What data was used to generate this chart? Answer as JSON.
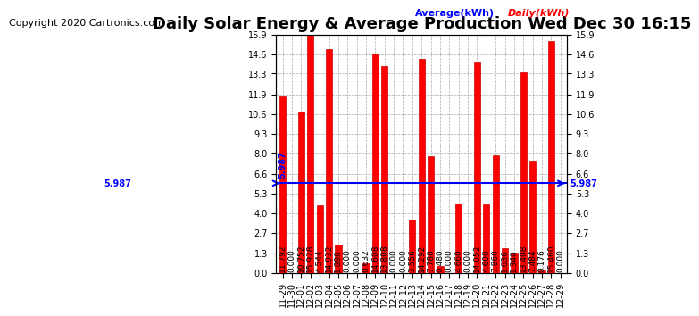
{
  "title": "Daily Solar Energy & Average Production Wed Dec 30 16:15",
  "copyright": "Copyright 2020 Cartronics.com",
  "average_label": "Average(kWh)",
  "daily_label": "Daily(kWh)",
  "average_value": 5.987,
  "categories": [
    "11-29",
    "11-30",
    "12-01",
    "12-02",
    "12-03",
    "12-04",
    "12-05",
    "12-06",
    "12-07",
    "12-08",
    "12-09",
    "12-10",
    "12-11",
    "12-12",
    "12-13",
    "12-14",
    "12-15",
    "12-16",
    "12-17",
    "12-18",
    "12-19",
    "12-20",
    "12-21",
    "12-22",
    "12-23",
    "12-24",
    "12-25",
    "12-26",
    "12-27",
    "12-28",
    "12-29"
  ],
  "values": [
    11.792,
    0.0,
    10.752,
    15.928,
    4.544,
    14.932,
    1.89,
    0.0,
    0.0,
    0.632,
    14.608,
    13.808,
    0.0,
    0.0,
    3.556,
    14.292,
    7.78,
    0.48,
    0.0,
    4.66,
    0.0,
    14.052,
    4.6,
    7.86,
    1.636,
    1.34,
    13.408,
    7.484,
    0.176,
    15.46,
    0.0
  ],
  "bar_color": "#ff0000",
  "bar_edgecolor": "#cc0000",
  "average_line_color": "blue",
  "title_color": "black",
  "copyright_color": "black",
  "avg_label_color": "blue",
  "daily_label_color": "red",
  "yticks": [
    0.0,
    1.3,
    2.7,
    4.0,
    5.3,
    6.6,
    8.0,
    9.3,
    10.6,
    11.9,
    13.3,
    14.6,
    15.9
  ],
  "ylim": [
    0.0,
    15.9
  ],
  "background_color": "#ffffff",
  "grid_color": "#aaaaaa",
  "title_fontsize": 13,
  "copyright_fontsize": 8,
  "tick_fontsize": 7,
  "bar_label_fontsize": 6.5
}
